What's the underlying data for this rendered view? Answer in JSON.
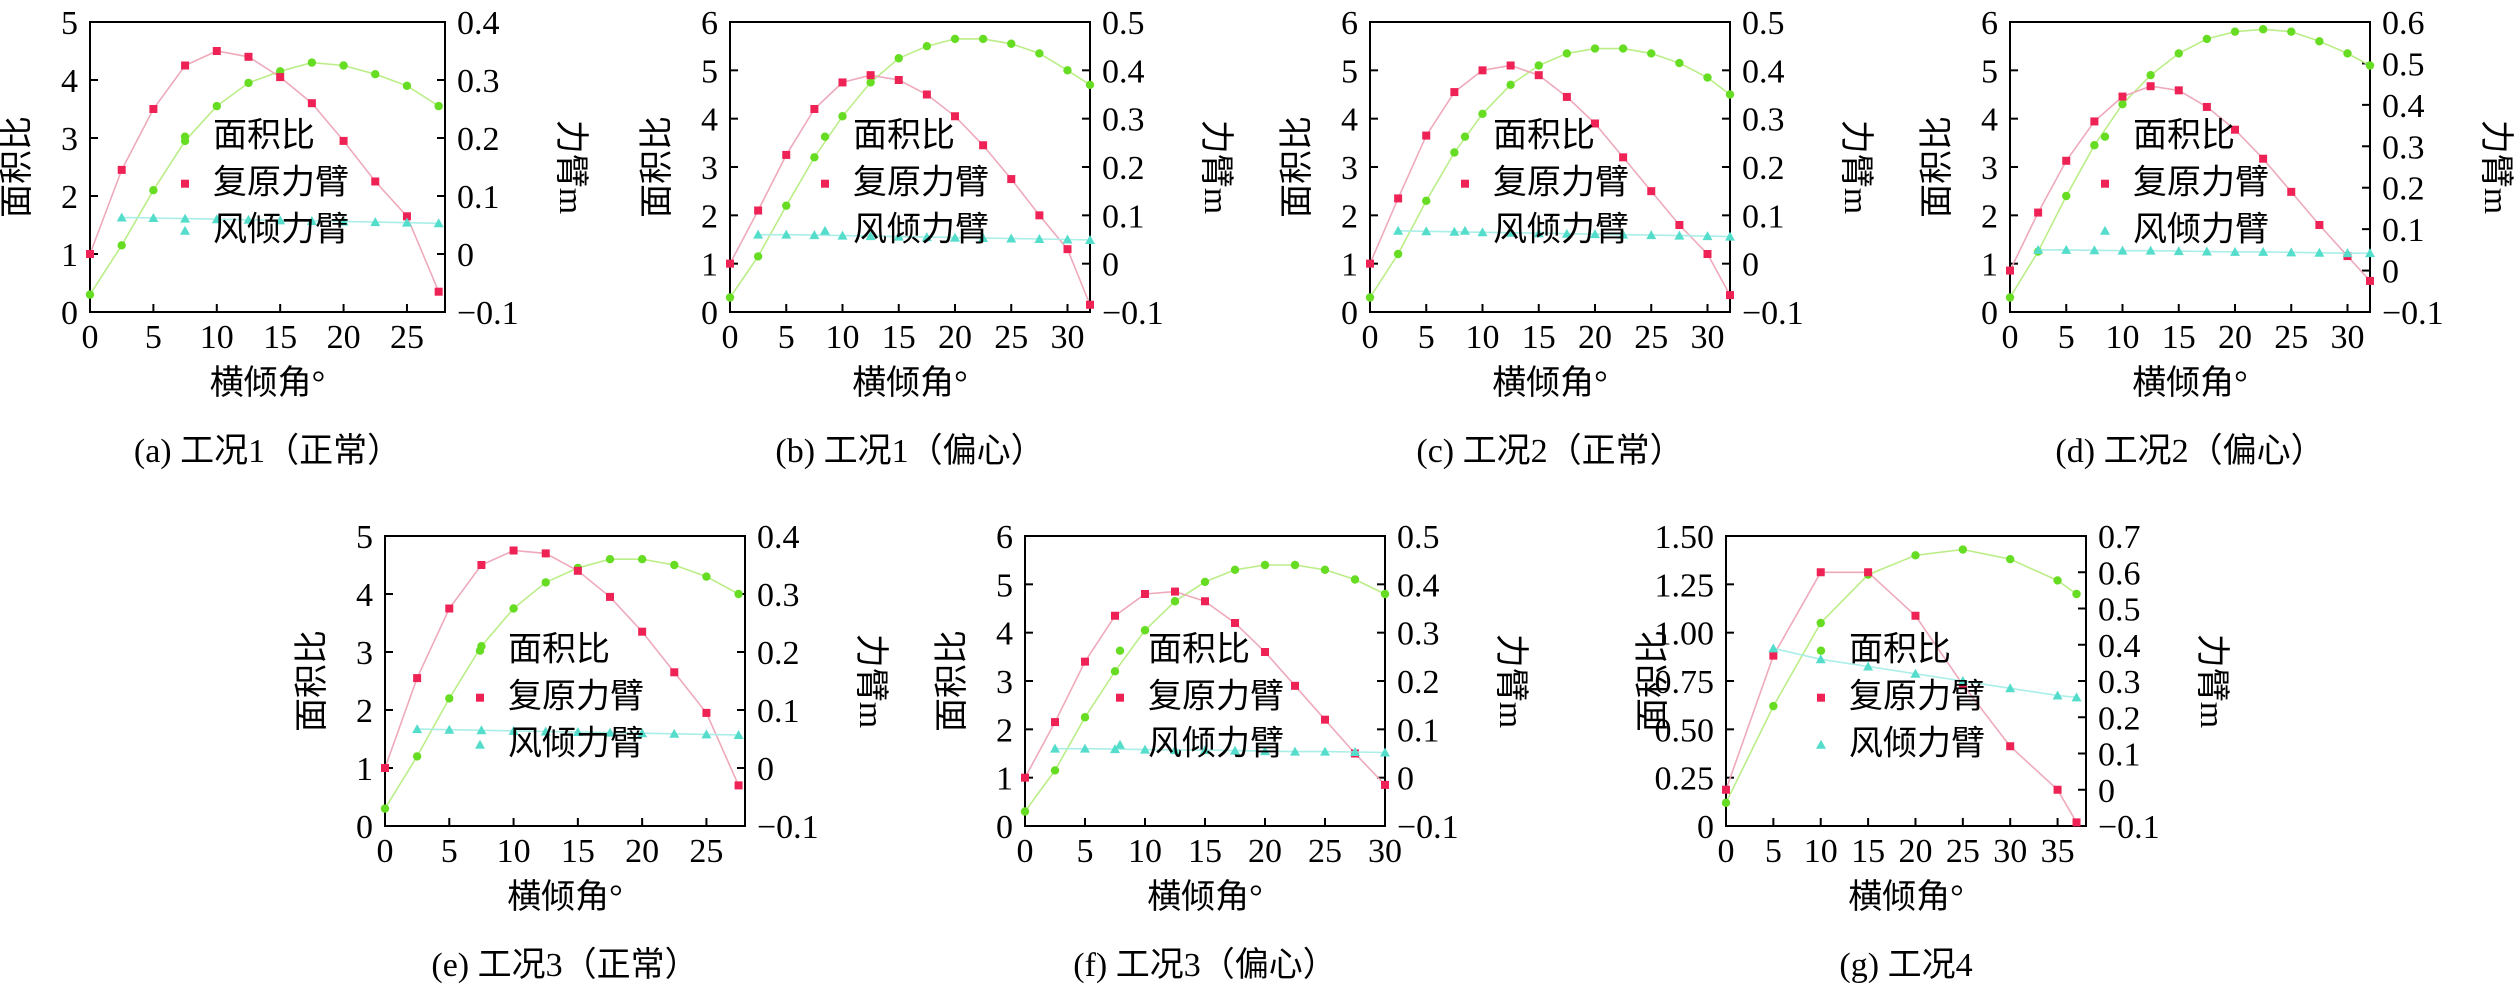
{
  "figure": {
    "legend_labels": [
      "面积比",
      "复原力臂",
      "风倾力臂"
    ],
    "x_label": "横倾角°",
    "y_left_label": "面积比",
    "y_right_label": "力臂m",
    "colors": {
      "area": "#66dd22",
      "area_line": "#bbee88",
      "righting": "#ee2255",
      "righting_line": "#eeaabb",
      "wind": "#55ddcc",
      "wind_line": "#aaeee8"
    }
  },
  "chart_data": [
    {
      "id": "a",
      "type": "line",
      "caption": "(a) 工况1（正常）",
      "x_ticks": [
        0,
        5,
        10,
        15,
        20,
        25
      ],
      "xlim": [
        0,
        28
      ],
      "y_left_ticks": [
        "0",
        "1",
        "2",
        "3",
        "4",
        "5"
      ],
      "ylim_left": [
        0,
        5
      ],
      "y_right_ticks": [
        "−0.1",
        "0",
        "0.1",
        "0.2",
        "0.3",
        "0.4"
      ],
      "ylim_right": [
        -0.1,
        0.4
      ],
      "series": [
        {
          "name": "面积比",
          "axis": "left",
          "x": [
            0,
            2.5,
            5,
            7.5,
            10,
            12.5,
            15,
            17.5,
            20,
            22.5,
            25,
            27.5
          ],
          "values": [
            0.3,
            1.15,
            2.1,
            2.95,
            3.55,
            3.95,
            4.15,
            4.3,
            4.25,
            4.1,
            3.9,
            3.55
          ]
        },
        {
          "name": "复原力臂",
          "axis": "right",
          "x": [
            0,
            2.5,
            5,
            7.5,
            10,
            12.5,
            15,
            17.5,
            20,
            22.5,
            25,
            27.5
          ],
          "values": [
            0.0,
            0.145,
            0.25,
            0.325,
            0.35,
            0.34,
            0.305,
            0.26,
            0.195,
            0.125,
            0.065,
            -0.065
          ]
        },
        {
          "name": "风倾力臂",
          "axis": "right",
          "x": [
            2.5,
            5,
            7.5,
            10,
            12.5,
            15,
            17.5,
            20,
            22.5,
            25,
            27.5
          ],
          "values": [
            0.063,
            0.062,
            0.061,
            0.06,
            0.059,
            0.058,
            0.057,
            0.056,
            0.055,
            0.054,
            0.053
          ]
        }
      ]
    },
    {
      "id": "b",
      "type": "line",
      "caption": "(b) 工况1（偏心）",
      "x_ticks": [
        0,
        5,
        10,
        15,
        20,
        25,
        30
      ],
      "xlim": [
        0,
        32
      ],
      "y_left_ticks": [
        "0",
        "1",
        "2",
        "3",
        "4",
        "5",
        "6"
      ],
      "ylim_left": [
        0,
        6
      ],
      "y_right_ticks": [
        "−0.1",
        "0",
        "0.1",
        "0.2",
        "0.3",
        "0.4",
        "0.5"
      ],
      "ylim_right": [
        -0.1,
        0.5
      ],
      "series": [
        {
          "name": "面积比",
          "axis": "left",
          "x": [
            0,
            2.5,
            5,
            7.5,
            10,
            12.5,
            15,
            17.5,
            20,
            22.5,
            25,
            27.5,
            30,
            32
          ],
          "values": [
            0.3,
            1.15,
            2.2,
            3.2,
            4.05,
            4.75,
            5.25,
            5.5,
            5.65,
            5.65,
            5.55,
            5.35,
            5.0,
            4.7
          ]
        },
        {
          "name": "复原力臂",
          "axis": "right",
          "x": [
            0,
            2.5,
            5,
            7.5,
            10,
            12.5,
            15,
            17.5,
            20,
            22.5,
            25,
            27.5,
            30,
            32
          ],
          "values": [
            0.0,
            0.11,
            0.225,
            0.32,
            0.375,
            0.39,
            0.38,
            0.35,
            0.305,
            0.245,
            0.175,
            0.1,
            0.03,
            -0.085
          ]
        },
        {
          "name": "风倾力臂",
          "axis": "right",
          "x": [
            2.5,
            5,
            7.5,
            10,
            12.5,
            15,
            17.5,
            20,
            22.5,
            25,
            27.5,
            30,
            32
          ],
          "values": [
            0.06,
            0.06,
            0.059,
            0.058,
            0.057,
            0.056,
            0.055,
            0.054,
            0.053,
            0.052,
            0.051,
            0.05,
            0.049
          ]
        }
      ]
    },
    {
      "id": "c",
      "type": "line",
      "caption": "(c) 工况2（正常）",
      "x_ticks": [
        0,
        5,
        10,
        15,
        20,
        25,
        30
      ],
      "xlim": [
        0,
        32
      ],
      "y_left_ticks": [
        "0",
        "1",
        "2",
        "3",
        "4",
        "5",
        "6"
      ],
      "ylim_left": [
        0,
        6
      ],
      "y_right_ticks": [
        "−0.1",
        "0",
        "0.1",
        "0.2",
        "0.3",
        "0.4",
        "0.5"
      ],
      "ylim_right": [
        -0.1,
        0.5
      ],
      "series": [
        {
          "name": "面积比",
          "axis": "left",
          "x": [
            0,
            2.5,
            5,
            7.5,
            10,
            12.5,
            15,
            17.5,
            20,
            22.5,
            25,
            27.5,
            30,
            32
          ],
          "values": [
            0.3,
            1.2,
            2.3,
            3.3,
            4.1,
            4.7,
            5.1,
            5.35,
            5.45,
            5.45,
            5.35,
            5.15,
            4.85,
            4.5
          ]
        },
        {
          "name": "复原力臂",
          "axis": "right",
          "x": [
            0,
            2.5,
            5,
            7.5,
            10,
            12.5,
            15,
            17.5,
            20,
            22.5,
            25,
            27.5,
            30,
            32
          ],
          "values": [
            0.0,
            0.135,
            0.265,
            0.355,
            0.4,
            0.41,
            0.39,
            0.345,
            0.29,
            0.22,
            0.15,
            0.08,
            0.02,
            -0.065
          ]
        },
        {
          "name": "风倾力臂",
          "axis": "right",
          "x": [
            2.5,
            5,
            7.5,
            10,
            12.5,
            15,
            17.5,
            20,
            22.5,
            25,
            27.5,
            30,
            32
          ],
          "values": [
            0.068,
            0.067,
            0.066,
            0.065,
            0.064,
            0.063,
            0.062,
            0.061,
            0.06,
            0.059,
            0.058,
            0.057,
            0.056
          ]
        }
      ]
    },
    {
      "id": "d",
      "type": "line",
      "caption": "(d) 工况2（偏心）",
      "x_ticks": [
        0,
        5,
        10,
        15,
        20,
        25,
        30
      ],
      "xlim": [
        0,
        32
      ],
      "y_left_ticks": [
        "0",
        "1",
        "2",
        "3",
        "4",
        "5",
        "6"
      ],
      "ylim_left": [
        0,
        6
      ],
      "y_right_ticks": [
        "−0.1",
        "0",
        "0.1",
        "0.2",
        "0.3",
        "0.4",
        "0.5",
        "0.6"
      ],
      "ylim_right": [
        -0.1,
        0.6
      ],
      "series": [
        {
          "name": "面积比",
          "axis": "left",
          "x": [
            0,
            2.5,
            5,
            7.5,
            10,
            12.5,
            15,
            17.5,
            20,
            22.5,
            25,
            27.5,
            30,
            32
          ],
          "values": [
            0.3,
            1.25,
            2.4,
            3.45,
            4.3,
            4.9,
            5.35,
            5.65,
            5.8,
            5.85,
            5.8,
            5.6,
            5.35,
            5.1
          ]
        },
        {
          "name": "复原力臂",
          "axis": "right",
          "x": [
            0,
            2.5,
            5,
            7.5,
            10,
            12.5,
            15,
            17.5,
            20,
            22.5,
            25,
            27.5,
            30,
            32
          ],
          "values": [
            0.0,
            0.14,
            0.265,
            0.36,
            0.42,
            0.445,
            0.435,
            0.395,
            0.34,
            0.27,
            0.19,
            0.11,
            0.035,
            -0.025
          ]
        },
        {
          "name": "风倾力臂",
          "axis": "right",
          "x": [
            2.5,
            5,
            7.5,
            10,
            12.5,
            15,
            17.5,
            20,
            22.5,
            25,
            27.5,
            30,
            32
          ],
          "values": [
            0.05,
            0.05,
            0.049,
            0.048,
            0.048,
            0.047,
            0.046,
            0.045,
            0.045,
            0.044,
            0.043,
            0.042,
            0.042
          ]
        }
      ]
    },
    {
      "id": "e",
      "type": "line",
      "caption": "(e) 工况3（正常）",
      "x_ticks": [
        0,
        5,
        10,
        15,
        20,
        25
      ],
      "xlim": [
        0,
        28
      ],
      "y_left_ticks": [
        "0",
        "1",
        "2",
        "3",
        "4",
        "5"
      ],
      "ylim_left": [
        0,
        5
      ],
      "y_right_ticks": [
        "−0.1",
        "0",
        "0.1",
        "0.2",
        "0.3",
        "0.4"
      ],
      "ylim_right": [
        -0.1,
        0.4
      ],
      "series": [
        {
          "name": "面积比",
          "axis": "left",
          "x": [
            0,
            2.5,
            5,
            7.5,
            10,
            12.5,
            15,
            17.5,
            20,
            22.5,
            25,
            27.5
          ],
          "values": [
            0.3,
            1.2,
            2.2,
            3.1,
            3.75,
            4.2,
            4.45,
            4.6,
            4.6,
            4.5,
            4.3,
            4.0
          ]
        },
        {
          "name": "复原力臂",
          "axis": "right",
          "x": [
            0,
            2.5,
            5,
            7.5,
            10,
            12.5,
            15,
            17.5,
            20,
            22.5,
            25,
            27.5
          ],
          "values": [
            0.0,
            0.155,
            0.275,
            0.35,
            0.375,
            0.37,
            0.34,
            0.295,
            0.235,
            0.165,
            0.095,
            -0.03
          ]
        },
        {
          "name": "风倾力臂",
          "axis": "right",
          "x": [
            2.5,
            5,
            7.5,
            10,
            12.5,
            15,
            17.5,
            20,
            22.5,
            25,
            27.5
          ],
          "values": [
            0.067,
            0.066,
            0.065,
            0.064,
            0.063,
            0.062,
            0.061,
            0.06,
            0.059,
            0.058,
            0.057
          ]
        }
      ]
    },
    {
      "id": "f",
      "type": "line",
      "caption": "(f) 工况3（偏心）",
      "x_ticks": [
        0,
        5,
        10,
        15,
        20,
        25,
        30
      ],
      "xlim": [
        0,
        30
      ],
      "y_left_ticks": [
        "0",
        "1",
        "2",
        "3",
        "4",
        "5",
        "6"
      ],
      "ylim_left": [
        0,
        6
      ],
      "y_right_ticks": [
        "−0.1",
        "0",
        "0.1",
        "0.2",
        "0.3",
        "0.4",
        "0.5"
      ],
      "ylim_right": [
        -0.1,
        0.5
      ],
      "series": [
        {
          "name": "面积比",
          "axis": "left",
          "x": [
            0,
            2.5,
            5,
            7.5,
            10,
            12.5,
            15,
            17.5,
            20,
            22.5,
            25,
            27.5,
            30
          ],
          "values": [
            0.3,
            1.15,
            2.25,
            3.2,
            4.05,
            4.65,
            5.05,
            5.3,
            5.4,
            5.4,
            5.3,
            5.1,
            4.8
          ]
        },
        {
          "name": "复原力臂",
          "axis": "right",
          "x": [
            0,
            2.5,
            5,
            7.5,
            10,
            12.5,
            15,
            17.5,
            20,
            22.5,
            25,
            27.5,
            30
          ],
          "values": [
            0.0,
            0.115,
            0.24,
            0.335,
            0.38,
            0.385,
            0.365,
            0.32,
            0.26,
            0.19,
            0.12,
            0.05,
            -0.015
          ]
        },
        {
          "name": "风倾力臂",
          "axis": "right",
          "x": [
            2.5,
            5,
            7.5,
            10,
            12.5,
            15,
            17.5,
            20,
            22.5,
            25,
            27.5,
            30
          ],
          "values": [
            0.06,
            0.06,
            0.059,
            0.058,
            0.057,
            0.057,
            0.056,
            0.055,
            0.054,
            0.054,
            0.053,
            0.052
          ]
        }
      ]
    },
    {
      "id": "g",
      "type": "line",
      "caption": "(g) 工况4",
      "x_ticks": [
        0,
        5,
        10,
        15,
        20,
        25,
        30,
        35
      ],
      "xlim": [
        0,
        38
      ],
      "y_left_ticks": [
        "0",
        "0.25",
        "0.50",
        "0.75",
        "1.00",
        "1.25",
        "1.50"
      ],
      "ylim_left": [
        0,
        1.5
      ],
      "y_right_ticks": [
        "−0.1",
        "0",
        "0.1",
        "0.2",
        "0.3",
        "0.4",
        "0.5",
        "0.6",
        "0.7"
      ],
      "ylim_right": [
        -0.1,
        0.7
      ],
      "series": [
        {
          "name": "面积比",
          "axis": "left",
          "x": [
            0,
            5,
            10,
            15,
            20,
            25,
            30,
            35,
            37
          ],
          "values": [
            0.12,
            0.62,
            1.05,
            1.3,
            1.4,
            1.43,
            1.38,
            1.27,
            1.2
          ]
        },
        {
          "name": "复原力臂",
          "axis": "right",
          "x": [
            0,
            5,
            10,
            15,
            20,
            25,
            30,
            35,
            37
          ],
          "values": [
            0.0,
            0.37,
            0.6,
            0.6,
            0.48,
            0.29,
            0.12,
            0.0,
            -0.09
          ]
        },
        {
          "name": "风倾力臂",
          "axis": "right",
          "x": [
            5,
            10,
            15,
            20,
            25,
            30,
            35,
            37
          ],
          "values": [
            0.39,
            0.36,
            0.34,
            0.32,
            0.3,
            0.28,
            0.26,
            0.255
          ]
        }
      ]
    }
  ]
}
